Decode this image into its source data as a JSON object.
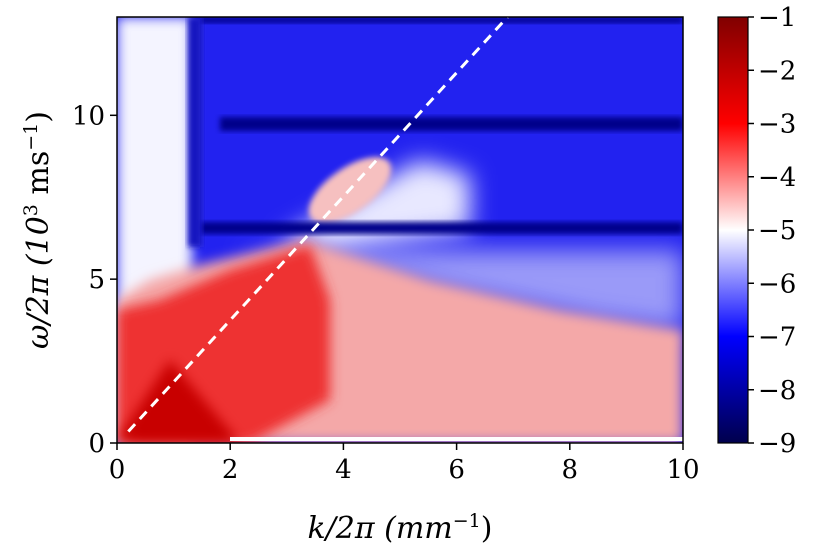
{
  "chart_data": {
    "type": "heatmap",
    "title": "",
    "xlabel": "k/2π (mm⁻¹)",
    "ylabel_main": "ω/2π (10",
    "ylabel_sup": "3",
    "ylabel_rest": " ms",
    "ylabel_sup2": "−1",
    "ylabel_end": ")",
    "xlabel_main": "k/2π (mm",
    "xlabel_sup": "−1",
    "xlabel_end": ")",
    "xlim": [
      0,
      10
    ],
    "ylim": [
      0,
      13
    ],
    "x_ticks": [
      0,
      2,
      4,
      6,
      8,
      10
    ],
    "x_tick_labels": [
      "0",
      "2",
      "4",
      "6",
      "8",
      "10"
    ],
    "y_ticks": [
      0,
      5,
      10
    ],
    "y_tick_labels": [
      "0",
      "5",
      "10"
    ],
    "colorbar": {
      "range": [
        -9,
        -1
      ],
      "ticks": [
        -1,
        -2,
        -3,
        -4,
        -5,
        -6,
        -7,
        -8,
        -9
      ],
      "tick_labels": [
        "−1",
        "−2",
        "−3",
        "−4",
        "−5",
        "−6",
        "−7",
        "−8",
        "−9"
      ],
      "colormap": "seismic",
      "colors": {
        "low": "#00004c",
        "mid": "#ffffff",
        "high": "#800000"
      }
    },
    "dashed_line": {
      "x": [
        0.2,
        6.9
      ],
      "y": [
        0.35,
        13
      ],
      "color": "#ffffff"
    },
    "horizontal_bands": [
      {
        "y": 6.5,
        "value": -9
      },
      {
        "y": 9.7,
        "value": -9
      },
      {
        "y": 12.8,
        "value": -8.5
      }
    ],
    "hot_spot": {
      "x": 4.1,
      "y": 7.7,
      "value": -4
    }
  }
}
